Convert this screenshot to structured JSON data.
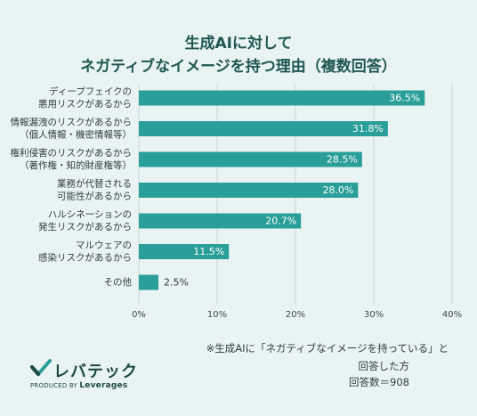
{
  "title_line1": "生成AIに対して",
  "title_line2": "ネガティブなイメージを持つ理由（複数回答）",
  "chart_data": {
    "type": "bar",
    "orientation": "horizontal",
    "title": "生成AIに対して ネガティブなイメージを持つ理由（複数回答）",
    "categories": [
      [
        "ディープフェイクの",
        "悪用リスクがあるから"
      ],
      [
        "情報漏洩のリスクがあるから",
        "（個人情報・機密情報等）"
      ],
      [
        "権利侵害のリスクがあるから",
        "（著作権・知的財産権等）"
      ],
      [
        "業務が代替される",
        "可能性があるから"
      ],
      [
        "ハルシネーションの",
        "発生リスクがあるから"
      ],
      [
        "マルウェアの",
        "感染リスクがあるから"
      ],
      [
        "その他"
      ]
    ],
    "values": [
      36.5,
      31.8,
      28.5,
      28.0,
      20.7,
      11.5,
      2.5
    ],
    "value_labels": [
      "36.5%",
      "31.8%",
      "28.5%",
      "28.0%",
      "20.7%",
      "11.5%",
      "2.5%"
    ],
    "xlim": [
      0,
      40
    ],
    "xticks": [
      "0%",
      "10%",
      "20%",
      "30%",
      "40%"
    ],
    "grid": true,
    "bar_color": "#2a9e98",
    "label_color_inside": "#ffffff",
    "label_color_outside": "#2f3d3b"
  },
  "note_line1": "※生成AIに「ネガティブなイメージを持っている」と",
  "note_line2": "回答した方",
  "note_line3": "回答数＝908",
  "logo": {
    "name": "レバテック",
    "produced_by": "PRODUCED BY",
    "company": "Leverages"
  },
  "colors": {
    "background": "#e9f4f2",
    "title": "#1f5750",
    "grid": "#c9d6d4"
  }
}
